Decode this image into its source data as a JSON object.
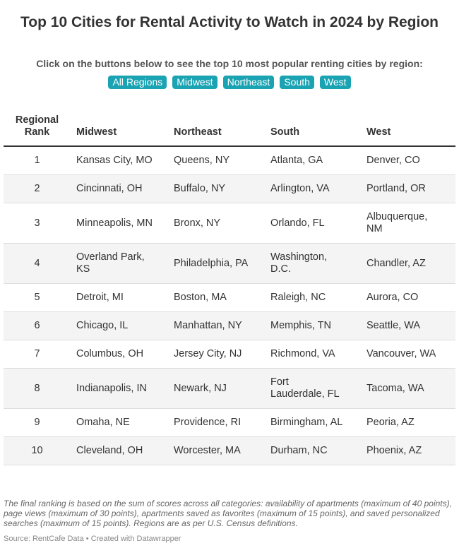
{
  "header": {
    "title": "Top 10 Cities for Rental Activity to Watch in 2024 by Region",
    "subtitle": "Click on the buttons below to see the top 10 most popular renting cities by region:",
    "buttons": [
      "All Regions",
      "Midwest",
      "Northeast",
      "South",
      "West"
    ]
  },
  "table": {
    "columns": [
      "Regional Rank",
      "Midwest",
      "Northeast",
      "South",
      "West"
    ],
    "rows": [
      [
        1,
        "Kansas City, MO",
        "Queens, NY",
        "Atlanta, GA",
        "Denver, CO"
      ],
      [
        2,
        "Cincinnati, OH",
        "Buffalo, NY",
        "Arlington, VA",
        "Portland, OR"
      ],
      [
        3,
        "Minneapolis, MN",
        "Bronx, NY",
        "Orlando, FL",
        "Albuquerque, NM"
      ],
      [
        4,
        "Overland Park, KS",
        "Philadelphia, PA",
        "Washington, D.C.",
        "Chandler, AZ"
      ],
      [
        5,
        "Detroit, MI",
        "Boston, MA",
        "Raleigh, NC",
        "Aurora, CO"
      ],
      [
        6,
        "Chicago, IL",
        "Manhattan, NY",
        "Memphis, TN",
        "Seattle, WA"
      ],
      [
        7,
        "Columbus, OH",
        "Jersey City, NJ",
        "Richmond, VA",
        "Vancouver, WA"
      ],
      [
        8,
        "Indianapolis, IN",
        "Newark, NJ",
        "Fort Lauderdale, FL",
        "Tacoma, WA"
      ],
      [
        9,
        "Omaha, NE",
        "Providence, RI",
        "Birmingham, AL",
        "Peoria, AZ"
      ],
      [
        10,
        "Cleveland, OH",
        "Worcester, MA",
        "Durham, NC",
        "Phoenix, AZ"
      ]
    ]
  },
  "footer": {
    "note": "The final ranking is based on the sum of scores across all categories: availability of apartments (maximum of 40 points), page views (maximum of 30 points), apartments saved as favorites (maximum of 15 points), and saved personalized searches (maximum of 15 points). Regions are as per U.S. Census definitions.",
    "source": "Source: RentCafe Data • Created with Datawrapper"
  }
}
